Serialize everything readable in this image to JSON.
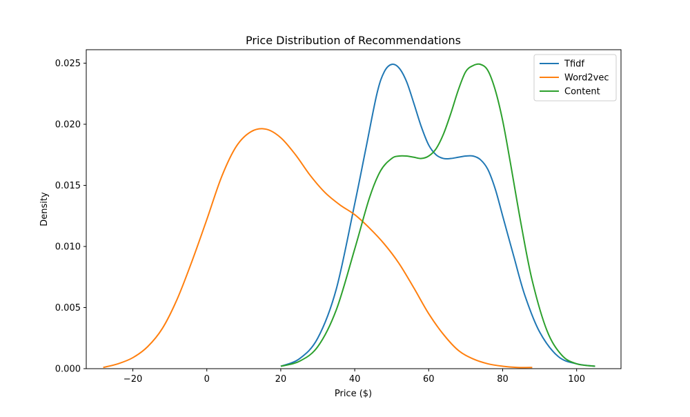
{
  "chart_data": {
    "type": "line",
    "title": "Price Distribution of Recommendations",
    "xlabel": "Price ($)",
    "ylabel": "Density",
    "xlim": [
      -32.6,
      112.0
    ],
    "ylim": [
      0,
      0.0261
    ],
    "xticks": [
      -20,
      0,
      20,
      40,
      60,
      80,
      100
    ],
    "xtick_labels": [
      "−20",
      "0",
      "20",
      "40",
      "60",
      "80",
      "100"
    ],
    "yticks": [
      0,
      0.005,
      0.01,
      0.015,
      0.02,
      0.025
    ],
    "ytick_labels": [
      "0.000",
      "0.005",
      "0.010",
      "0.015",
      "0.020",
      "0.025"
    ],
    "grid": false,
    "legend": "top-right",
    "series": [
      {
        "name": "Tfidf",
        "color": "#1f77b4",
        "x": [
          20,
          25,
          30,
          35,
          40,
          43,
          46,
          48,
          50,
          52,
          54,
          56,
          58,
          60,
          62,
          64,
          66,
          68,
          70,
          72,
          74,
          76,
          78,
          80,
          83,
          86,
          90,
          95,
          100,
          105
        ],
        "y": [
          0.0002,
          0.0008,
          0.0025,
          0.0065,
          0.0135,
          0.018,
          0.0225,
          0.0243,
          0.0249,
          0.0246,
          0.0235,
          0.0217,
          0.0198,
          0.0183,
          0.0175,
          0.0172,
          0.0172,
          0.0173,
          0.0174,
          0.0174,
          0.0171,
          0.0163,
          0.0147,
          0.0125,
          0.0092,
          0.006,
          0.003,
          0.001,
          0.0004,
          0.0002
        ]
      },
      {
        "name": "Word2vec",
        "color": "#ff7f0e",
        "x": [
          -28,
          -24,
          -20,
          -16,
          -12,
          -8,
          -4,
          0,
          4,
          8,
          12,
          16,
          20,
          24,
          28,
          32,
          36,
          40,
          44,
          48,
          52,
          56,
          60,
          64,
          68,
          72,
          76,
          80,
          84,
          88
        ],
        "y": [
          0.0001,
          0.0004,
          0.0009,
          0.0018,
          0.0033,
          0.0057,
          0.0088,
          0.0122,
          0.0157,
          0.0182,
          0.0194,
          0.0196,
          0.0189,
          0.0175,
          0.0158,
          0.0144,
          0.0134,
          0.0126,
          0.0115,
          0.0102,
          0.0086,
          0.0066,
          0.0045,
          0.0028,
          0.0015,
          0.0008,
          0.0004,
          0.0002,
          0.0001,
          0.0001
        ]
      },
      {
        "name": "Content",
        "color": "#2ca02c",
        "x": [
          20,
          25,
          30,
          35,
          40,
          44,
          47,
          50,
          52,
          54,
          56,
          58,
          60,
          62,
          64,
          66,
          68,
          70,
          72,
          74,
          76,
          78,
          80,
          82,
          85,
          88,
          92,
          96,
          100,
          105
        ],
        "y": [
          0.0002,
          0.0006,
          0.0018,
          0.0048,
          0.0098,
          0.014,
          0.0162,
          0.0172,
          0.0174,
          0.0174,
          0.0173,
          0.0172,
          0.0174,
          0.018,
          0.0192,
          0.0209,
          0.0228,
          0.0243,
          0.0248,
          0.0249,
          0.0244,
          0.0228,
          0.0203,
          0.017,
          0.0118,
          0.0072,
          0.0031,
          0.0011,
          0.0004,
          0.0002
        ]
      }
    ]
  }
}
